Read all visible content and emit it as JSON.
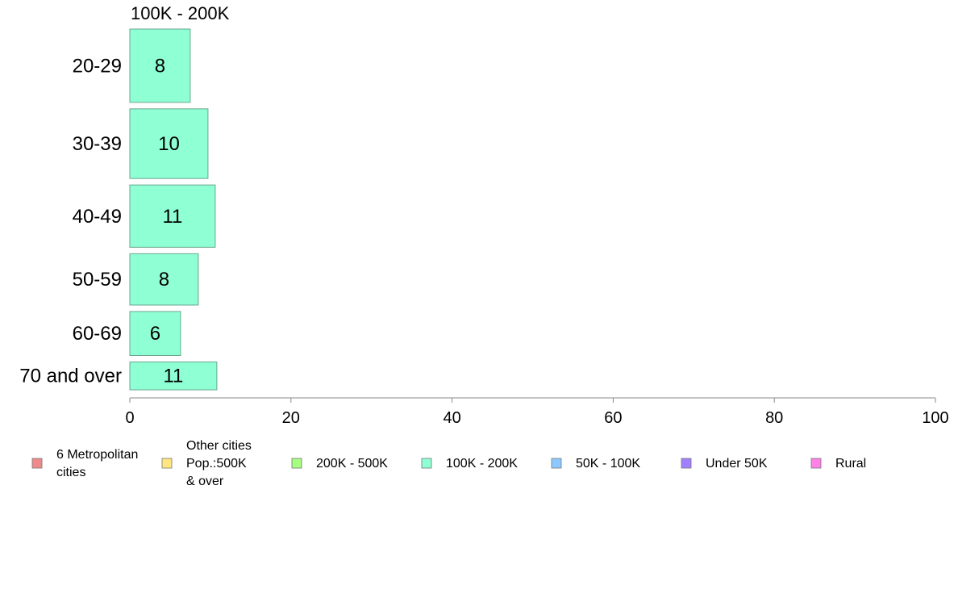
{
  "chart_data": {
    "type": "bar",
    "orientation": "horizontal",
    "panel_title": "100K - 200K",
    "categories": [
      "20-29",
      "30-39",
      "40-49",
      "50-59",
      "60-69",
      "70 and over"
    ],
    "series": [
      {
        "name": "100K - 200K",
        "values": [
          7.5,
          9.7,
          10.6,
          8.5,
          6.3,
          10.8
        ],
        "labels": [
          "8",
          "10",
          "11",
          "8",
          "6",
          "11"
        ],
        "color": "#8fffd4"
      }
    ],
    "category_weights": [
      1.0,
      0.95,
      0.85,
      0.7,
      0.6,
      0.38
    ],
    "xlim": [
      0,
      100
    ],
    "xticks": [
      0,
      20,
      40,
      60,
      80,
      100
    ],
    "tick_labels": [
      "0",
      "20",
      "40",
      "60",
      "80",
      "100"
    ],
    "xlabel": "",
    "ylabel": "",
    "grid": false,
    "legend_position": "bottom",
    "legend": [
      {
        "lines": [
          "6 Metropolitan",
          " cities"
        ],
        "color": "#f08a8a"
      },
      {
        "lines": [
          "Other cities",
          "Pop.:500K",
          " & over"
        ],
        "color": "#ffe680"
      },
      {
        "lines": [
          "200K - 500K"
        ],
        "color": "#a6ff80"
      },
      {
        "lines": [
          "100K - 200K"
        ],
        "color": "#8fffd4"
      },
      {
        "lines": [
          "50K - 100K"
        ],
        "color": "#8cc8ff"
      },
      {
        "lines": [
          "Under 50K"
        ],
        "color": "#a080ff"
      },
      {
        "lines": [
          "Rural"
        ],
        "color": "#ff80e6"
      }
    ],
    "bar_edge_color": "#6aa68f",
    "axis_color": "#888888"
  }
}
